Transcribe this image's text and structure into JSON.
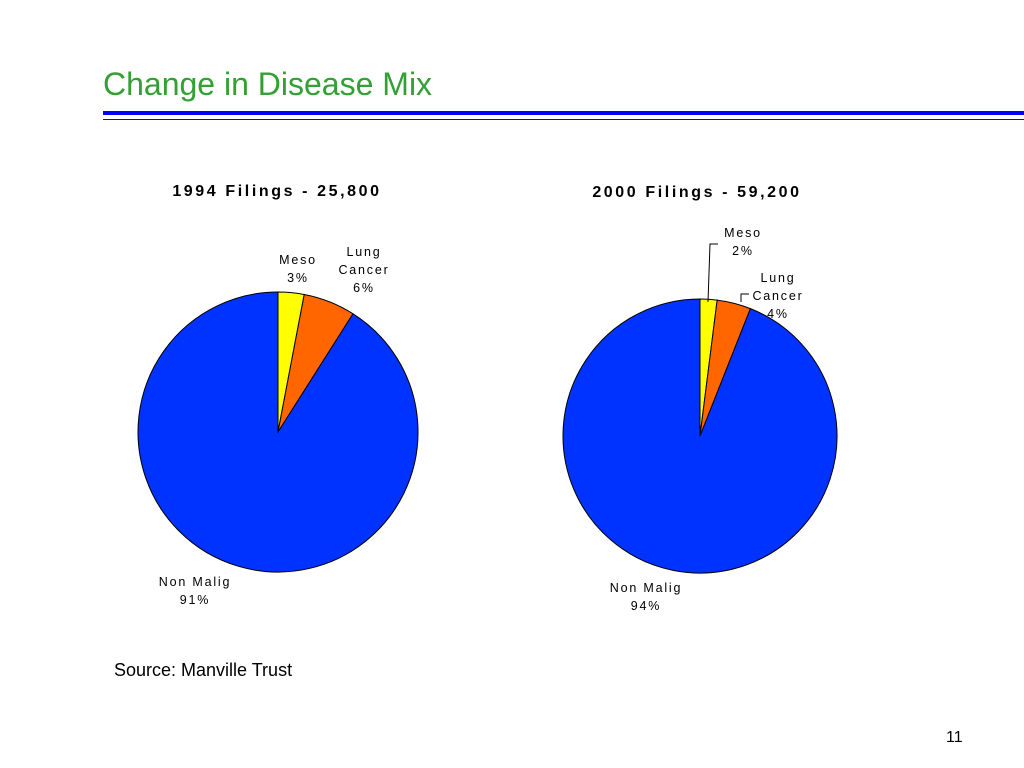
{
  "slide": {
    "title": "Change in Disease Mix",
    "source": "Source:  Manville Trust",
    "page_number": "11"
  },
  "colors": {
    "title": "#33a033",
    "rule": "#0000ff"
  },
  "chart_data": [
    {
      "type": "pie",
      "title": "1994 Filings - 25,800",
      "slices": [
        {
          "label_lines": [
            "Meso",
            "3%"
          ],
          "value": 3,
          "color": "#ffff00"
        },
        {
          "label_lines": [
            "Lung",
            "Cancer",
            "6%"
          ],
          "value": 6,
          "color": "#ff6600"
        },
        {
          "label_lines": [
            "Non Malig",
            "91%"
          ],
          "value": 91,
          "color": "#0033ff"
        }
      ]
    },
    {
      "type": "pie",
      "title": "2000 Filings - 59,200",
      "slices": [
        {
          "label_lines": [
            "Meso",
            "2%"
          ],
          "value": 2,
          "color": "#ffff00"
        },
        {
          "label_lines": [
            "Lung",
            "Cancer",
            "4%"
          ],
          "value": 4,
          "color": "#ff6600"
        },
        {
          "label_lines": [
            "Non Malig",
            "94%"
          ],
          "value": 94,
          "color": "#0033ff"
        }
      ]
    }
  ]
}
